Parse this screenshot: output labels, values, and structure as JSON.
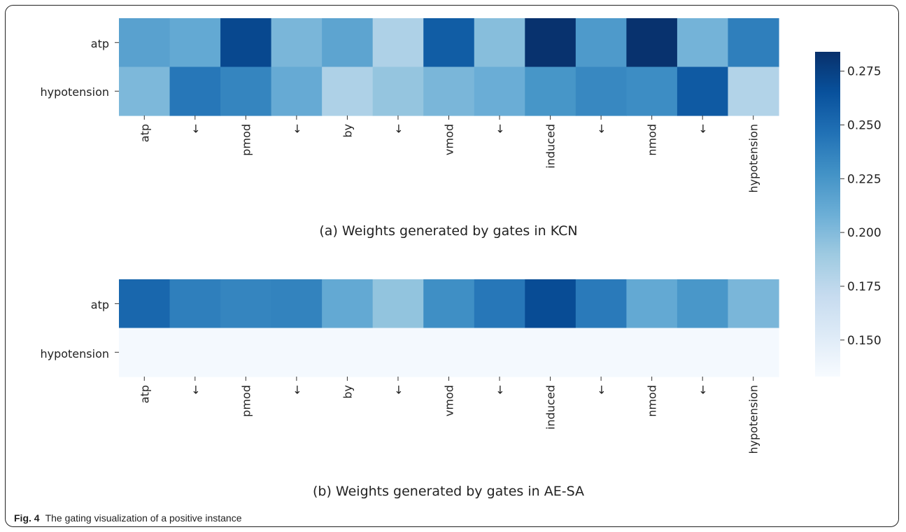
{
  "caption": {
    "label": "Fig. 4",
    "text": "The gating visualization of a positive instance"
  },
  "chart_data": [
    {
      "type": "heatmap",
      "title": "(a) Weights generated by gates in KCN",
      "rows": [
        "atp",
        "hypotension"
      ],
      "columns": [
        "atp",
        "←",
        "pmod",
        "←",
        "by",
        "←",
        "vmod",
        "←",
        "induced",
        "←",
        "nmod",
        "←",
        "hypotension"
      ],
      "values": [
        [
          0.217,
          0.212,
          0.27,
          0.203,
          0.215,
          0.182,
          0.258,
          0.198,
          0.283,
          0.222,
          0.283,
          0.205,
          0.238
        ],
        [
          0.202,
          0.243,
          0.235,
          0.211,
          0.182,
          0.193,
          0.203,
          0.209,
          0.225,
          0.233,
          0.23,
          0.26,
          0.18
        ]
      ]
    },
    {
      "type": "heatmap",
      "title": "(b) Weights generated by gates in AE-SA",
      "rows": [
        "atp",
        "hypotension"
      ],
      "columns": [
        "atp",
        "←",
        "pmod",
        "←",
        "by",
        "←",
        "vmod",
        "←",
        "induced",
        "←",
        "nmod",
        "←",
        "hypotension"
      ],
      "values": [
        [
          0.252,
          0.238,
          0.235,
          0.236,
          0.212,
          0.194,
          0.229,
          0.243,
          0.268,
          0.241,
          0.212,
          0.224,
          0.203
        ],
        [
          0.135,
          0.135,
          0.135,
          0.135,
          0.135,
          0.135,
          0.135,
          0.135,
          0.135,
          0.135,
          0.135,
          0.135,
          0.135
        ]
      ]
    }
  ],
  "colorbar": {
    "colormap": "Blues",
    "range": [
      0.133,
      0.284
    ],
    "ticks": [
      0.15,
      0.175,
      0.2,
      0.225,
      0.25,
      0.275
    ],
    "tick_labels": [
      "0.150",
      "0.175",
      "0.200",
      "0.225",
      "0.250",
      "0.275"
    ]
  }
}
